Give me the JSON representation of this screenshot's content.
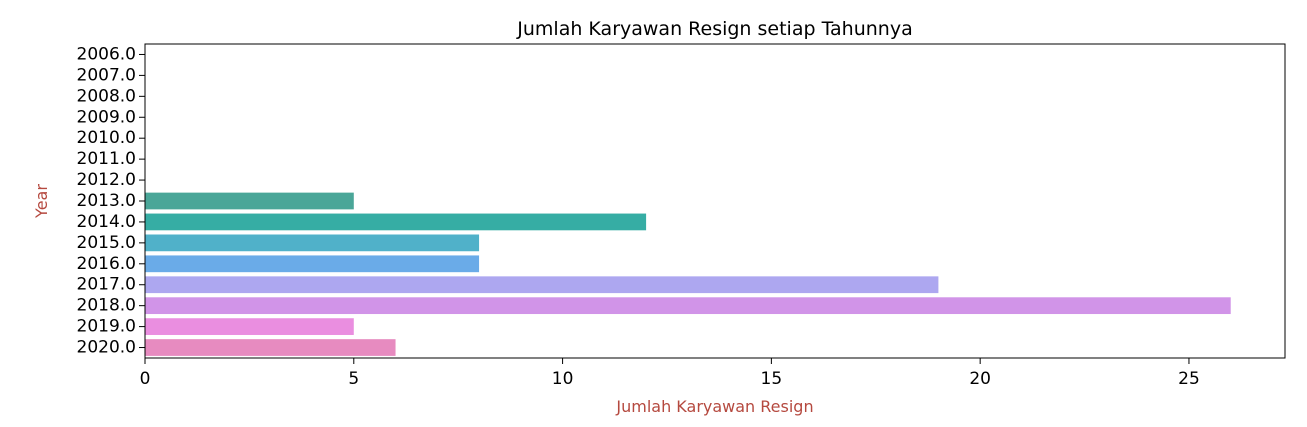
{
  "chart_data": {
    "type": "bar",
    "orientation": "horizontal",
    "title": "Jumlah Karyawan Resign setiap Tahunnya",
    "xlabel": "Jumlah Karyawan Resign",
    "ylabel": "Year",
    "label_color": "#b5493f",
    "categories": [
      "2006.0",
      "2007.0",
      "2008.0",
      "2009.0",
      "2010.0",
      "2011.0",
      "2012.0",
      "2013.0",
      "2014.0",
      "2015.0",
      "2016.0",
      "2017.0",
      "2018.0",
      "2019.0",
      "2020.0"
    ],
    "values": [
      0,
      0,
      0,
      0,
      0,
      0,
      0,
      5,
      12,
      8,
      8,
      19,
      26,
      5,
      6
    ],
    "colors": [
      "#f77189",
      "#f7754f",
      "#dc8932",
      "#c39532",
      "#ae9d31",
      "#97a431",
      "#77ab31",
      "#4aa698",
      "#36ada4",
      "#50b1c9",
      "#6aabe8",
      "#ada7f0",
      "#d194e8",
      "#ea8ee0",
      "#e78bc0"
    ],
    "xlim": [
      0,
      27.3
    ],
    "xticks": [
      0,
      5,
      10,
      15,
      20,
      25
    ],
    "xtick_labels": [
      "0",
      "5",
      "10",
      "15",
      "20",
      "25"
    ],
    "grid": false,
    "legend": "none"
  }
}
